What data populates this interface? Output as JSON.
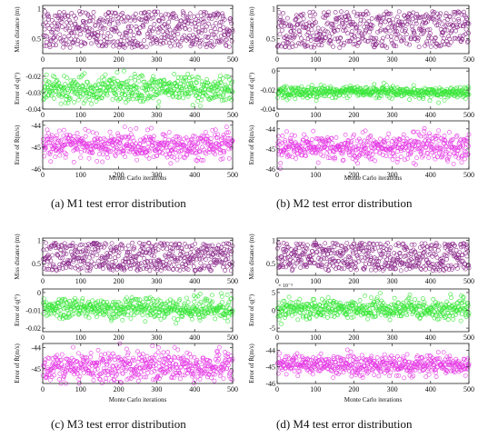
{
  "panels": [
    {
      "caption": "(a)  M1 test error distribution",
      "xlabel": "Monte Carlo iterations",
      "subplots": [
        {
          "ylabel": "Miss distance (m)",
          "yticks": [
            "0.5",
            "1"
          ],
          "color": "#8b2a8b"
        },
        {
          "ylabel": "Error of q(°)",
          "yticks": [
            "-0.02",
            "-0.03",
            "-0.04"
          ],
          "color": "#39e639"
        },
        {
          "ylabel": "Error of Ṙ(m/s)",
          "yticks": [
            "-44",
            "-45",
            "-46"
          ],
          "color": "#e53be5"
        }
      ]
    },
    {
      "caption": "(b)  M2 test error distribution",
      "xlabel": "Monte Carlo iterations",
      "subplots": [
        {
          "ylabel": "Miss distance (m)",
          "yticks": [
            "0.5",
            "1"
          ],
          "color": "#8b2a8b"
        },
        {
          "ylabel": "Error of q(°)",
          "yticks": [
            "0",
            "-0.02",
            "-0.04"
          ],
          "color": "#39e639"
        },
        {
          "ylabel": "Error of Ṙ(m/s)",
          "yticks": [
            "-44",
            "-45",
            "-46"
          ],
          "color": "#e53be5"
        }
      ]
    },
    {
      "caption": "(c)  M3 test error distribution",
      "xlabel": "Monte Carlo iterations",
      "subplots": [
        {
          "ylabel": "Miss distance (m)",
          "yticks": [
            "0.5",
            "1"
          ],
          "color": "#8b2a8b"
        },
        {
          "ylabel": "Error of q(°)",
          "yticks": [
            "0",
            "-0.01",
            "-0.02"
          ],
          "color": "#39e639"
        },
        {
          "ylabel": "Error of Ṙ(m/s)",
          "yticks": [
            "-44",
            "-45"
          ],
          "color": "#e53be5"
        }
      ]
    },
    {
      "caption": "(d)  M4 test error distribution",
      "xlabel": "Monte Carlo iterations",
      "subplots": [
        {
          "ylabel": "Miss distance (m)",
          "yticks": [
            "0.5",
            "1"
          ],
          "color": "#8b2a8b"
        },
        {
          "ylabel": "Error of q(°)",
          "yticks": [
            "5",
            "0",
            "-5"
          ],
          "exponent": "× 10⁻³",
          "color": "#39e639"
        },
        {
          "ylabel": "Error of Ṙ(m/s)",
          "yticks": [
            "-44",
            "-45",
            "-46"
          ],
          "color": "#e53be5"
        }
      ]
    }
  ],
  "chart_data": [
    {
      "type": "scatter",
      "title": "M1 test error distribution",
      "xlabel": "Monte Carlo iterations",
      "xlim": [
        0,
        500
      ],
      "xticks": [
        0,
        100,
        200,
        300,
        400,
        500
      ],
      "subplots": [
        {
          "ylabel": "Miss distance (m)",
          "ylim": [
            0.25,
            1.05
          ],
          "yticks": [
            0.5,
            1
          ],
          "distribution": "uniform",
          "center": 0.65,
          "spread": 0.3
        },
        {
          "ylabel": "Error of q(°)",
          "ylim": [
            -0.04,
            -0.015
          ],
          "yticks": [
            -0.02,
            -0.03,
            -0.04
          ],
          "distribution": "normal",
          "center": -0.028,
          "spread": 0.004
        },
        {
          "ylabel": "Error of Ṙ(m/s)",
          "ylim": [
            -46,
            -43.8
          ],
          "yticks": [
            -44,
            -45,
            -46
          ],
          "distribution": "normal",
          "center": -44.9,
          "spread": 0.3
        }
      ]
    },
    {
      "type": "scatter",
      "title": "M2 test error distribution",
      "xlabel": "Monte Carlo iterations",
      "xlim": [
        0,
        500
      ],
      "xticks": [
        0,
        100,
        200,
        300,
        400,
        500
      ],
      "subplots": [
        {
          "ylabel": "Miss distance (m)",
          "ylim": [
            0.25,
            1.05
          ],
          "yticks": [
            0.5,
            1
          ],
          "distribution": "uniform",
          "center": 0.65,
          "spread": 0.3
        },
        {
          "ylabel": "Error of q(°)",
          "ylim": [
            -0.04,
            0.003
          ],
          "yticks": [
            0,
            -0.02,
            -0.04
          ],
          "distribution": "normal",
          "center": -0.022,
          "spread": 0.003
        },
        {
          "ylabel": "Error of Ṙ(m/s)",
          "ylim": [
            -46,
            -43.6
          ],
          "yticks": [
            -44,
            -45,
            -46
          ],
          "distribution": "normal",
          "center": -44.9,
          "spread": 0.35
        }
      ]
    },
    {
      "type": "scatter",
      "title": "M3 test error distribution",
      "xlabel": "Monte Carlo iterations",
      "xlim": [
        0,
        500
      ],
      "xticks": [
        0,
        100,
        200,
        300,
        400,
        500
      ],
      "subplots": [
        {
          "ylabel": "Miss distance (m)",
          "ylim": [
            0.25,
            1.05
          ],
          "yticks": [
            0.5,
            1
          ],
          "distribution": "uniform",
          "center": 0.65,
          "spread": 0.3
        },
        {
          "ylabel": "Error of q(°)",
          "ylim": [
            -0.022,
            0.002
          ],
          "yticks": [
            0,
            -0.01,
            -0.02
          ],
          "distribution": "normal",
          "center": -0.009,
          "spread": 0.003
        },
        {
          "ylabel": "Error of Ṙ(m/s)",
          "ylim": [
            -45.7,
            -43.8
          ],
          "yticks": [
            -44,
            -45
          ],
          "distribution": "normal",
          "center": -44.9,
          "spread": 0.35
        }
      ]
    },
    {
      "type": "scatter",
      "title": "M4 test error distribution",
      "xlabel": "Monte Carlo iterations",
      "xlim": [
        0,
        500
      ],
      "xticks": [
        0,
        100,
        200,
        300,
        400,
        500
      ],
      "subplots": [
        {
          "ylabel": "Miss distance (m)",
          "ylim": [
            0.25,
            1.05
          ],
          "yticks": [
            0.5,
            1
          ],
          "distribution": "uniform",
          "center": 0.65,
          "spread": 0.3
        },
        {
          "ylabel": "Error of q(°)",
          "ylim": [
            -6,
            6
          ],
          "yticks": [
            5,
            0,
            -5
          ],
          "yscale_exponent": -3,
          "distribution": "normal",
          "center": 0.3,
          "spread": 1.4
        },
        {
          "ylabel": "Error of Ṙ(m/s)",
          "ylim": [
            -46,
            -43.6
          ],
          "yticks": [
            -44,
            -45,
            -46
          ],
          "distribution": "normal",
          "center": -44.9,
          "spread": 0.3
        }
      ]
    }
  ]
}
